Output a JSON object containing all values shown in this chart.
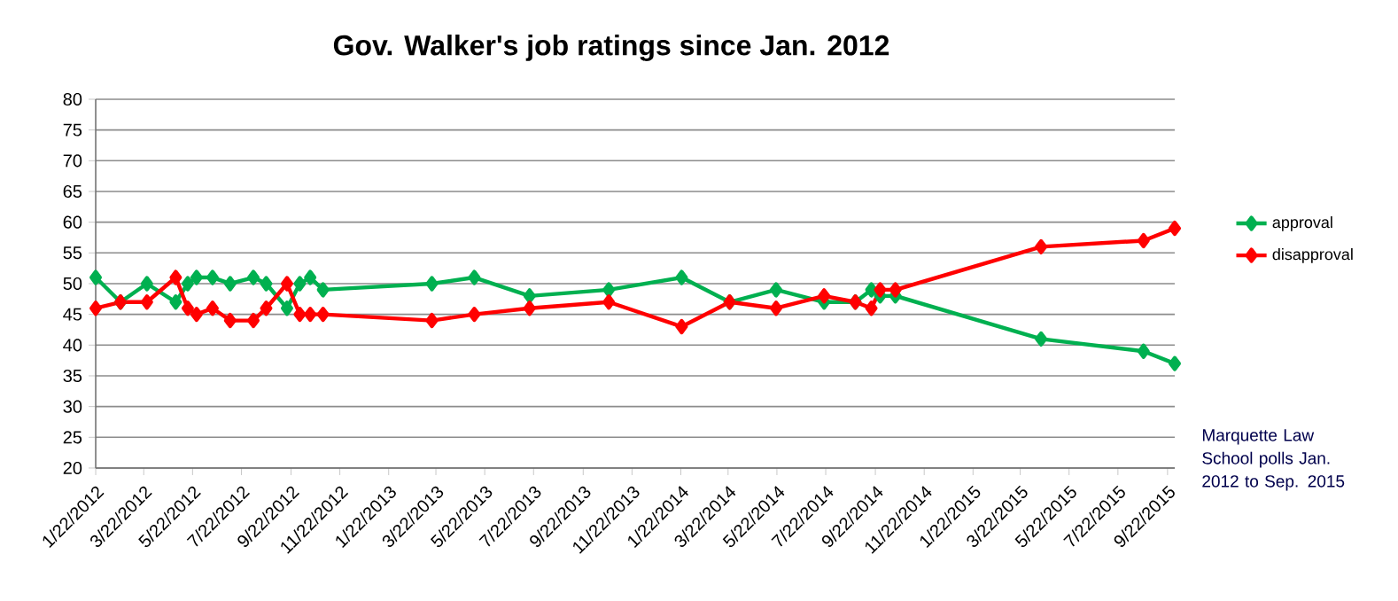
{
  "chart_data": {
    "type": "line",
    "title": "Gov. Walker's job ratings since Jan. 2012",
    "x": [
      "2012-01-22",
      "2012-02-22",
      "2012-03-26",
      "2012-05-01",
      "2012-05-16",
      "2012-05-27",
      "2012-06-16",
      "2012-07-08",
      "2012-08-06",
      "2012-08-22",
      "2012-09-17",
      "2012-10-03",
      "2012-10-16",
      "2012-11-01",
      "2013-03-17",
      "2013-05-09",
      "2013-07-17",
      "2013-10-24",
      "2014-01-23",
      "2014-03-24",
      "2014-05-21",
      "2014-07-20",
      "2014-08-28",
      "2014-09-17",
      "2014-09-28",
      "2014-10-17",
      "2015-04-17",
      "2015-08-23",
      "2015-10-01"
    ],
    "series": [
      {
        "name": "approval",
        "color": "#00b050",
        "values": [
          51,
          47,
          50,
          47,
          50,
          51,
          51,
          50,
          51,
          50,
          46,
          50,
          51,
          49,
          50,
          51,
          48,
          49,
          51,
          47,
          49,
          47,
          47,
          49,
          48,
          48,
          41,
          39,
          37
        ]
      },
      {
        "name": "disapproval",
        "color": "#ff0000",
        "values": [
          46,
          47,
          47,
          51,
          46,
          45,
          46,
          44,
          44,
          46,
          50,
          45,
          45,
          45,
          44,
          45,
          46,
          47,
          43,
          47,
          46,
          48,
          47,
          46,
          49,
          49,
          56,
          57,
          59
        ]
      }
    ],
    "xlim": [
      "2012-01-22",
      "2015-10-01"
    ],
    "xticks": [
      {
        "value": "2012-01-22",
        "label": "1/22/2012"
      },
      {
        "value": "2012-03-22",
        "label": "3/22/2012"
      },
      {
        "value": "2012-05-22",
        "label": "5/22/2012"
      },
      {
        "value": "2012-07-22",
        "label": "7/22/2012"
      },
      {
        "value": "2012-09-22",
        "label": "9/22/2012"
      },
      {
        "value": "2012-11-22",
        "label": "11/22/2012"
      },
      {
        "value": "2013-01-22",
        "label": "1/22/2013"
      },
      {
        "value": "2013-03-22",
        "label": "3/22/2013"
      },
      {
        "value": "2013-05-22",
        "label": "5/22/2013"
      },
      {
        "value": "2013-07-22",
        "label": "7/22/2013"
      },
      {
        "value": "2013-09-22",
        "label": "9/22/2013"
      },
      {
        "value": "2013-11-22",
        "label": "11/22/2013"
      },
      {
        "value": "2014-01-22",
        "label": "1/22/2014"
      },
      {
        "value": "2014-03-22",
        "label": "3/22/2014"
      },
      {
        "value": "2014-05-22",
        "label": "5/22/2014"
      },
      {
        "value": "2014-07-22",
        "label": "7/22/2014"
      },
      {
        "value": "2014-09-22",
        "label": "9/22/2014"
      },
      {
        "value": "2014-11-22",
        "label": "11/22/2014"
      },
      {
        "value": "2015-01-22",
        "label": "1/22/2015"
      },
      {
        "value": "2015-03-22",
        "label": "3/22/2015"
      },
      {
        "value": "2015-05-22",
        "label": "5/22/2015"
      },
      {
        "value": "2015-07-22",
        "label": "7/22/2015"
      },
      {
        "value": "2015-09-22",
        "label": "9/22/2015"
      }
    ],
    "ylim": [
      20,
      80
    ],
    "yticks": [
      20,
      25,
      30,
      35,
      40,
      45,
      50,
      55,
      60,
      65,
      70,
      75,
      80
    ],
    "grid": "y",
    "legend": "right",
    "marker": "diamond",
    "line_style": "solid",
    "annotations": [
      "Marquette Law School polls Jan. 2012 to Sep. 2015"
    ]
  }
}
